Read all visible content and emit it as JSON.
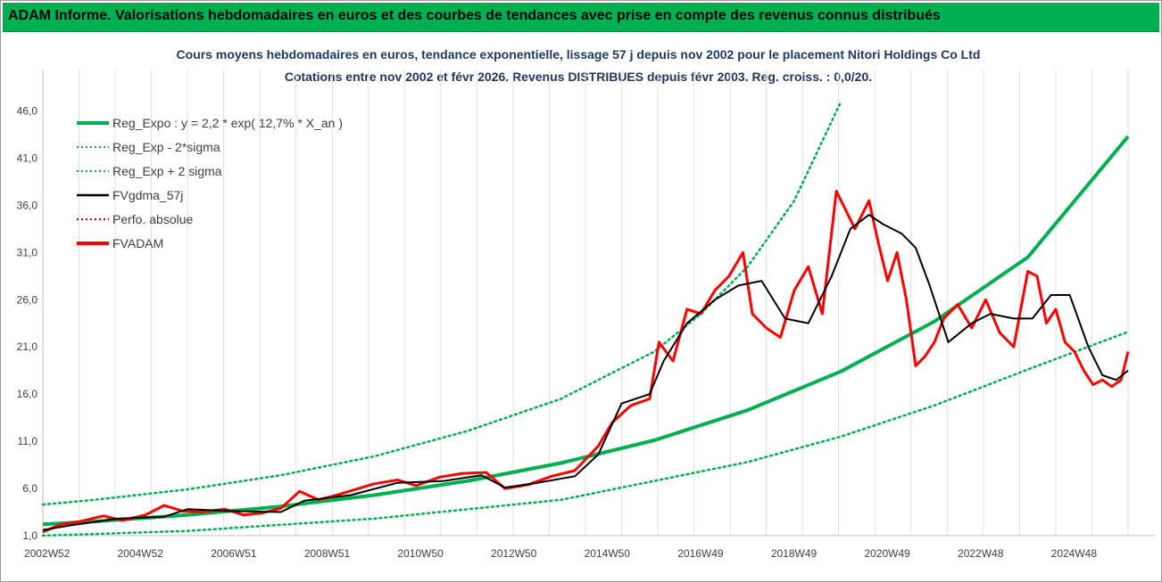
{
  "banner": {
    "title": "ADAM Informe. Valorisations hebdomadaires en euros et des courbes de tendances avec prise en compte des revenus connus distribués"
  },
  "colors": {
    "banner": "#00b050",
    "reg_expo": "#00b050",
    "sigma_bands": "#00b050",
    "fvgdma": "#000000",
    "perfo": "#e00000",
    "fvadam": "#ff0000",
    "title_text": "#1f3864"
  },
  "chart_data": {
    "type": "line",
    "title": "Cours moyens hebdomadaires en euros, tendance exponentielle, lissage 57 j depuis nov 2002 pour le placement Nitori Holdings Co Ltd",
    "subtitle": "Cotations entre nov 2002 et févr 2026. Revenus DISTRIBUES depuis févr 2003. Reg. croiss. : 0,0/20.",
    "xlabel": "",
    "ylabel": "",
    "ylim": [
      1.0,
      48.5
    ],
    "xlim": [
      2002.9,
      2026.15
    ],
    "grid": "vertical",
    "legend_position": "top-left",
    "y_ticks": [
      "1,0",
      "6,0",
      "11,0",
      "16,0",
      "21,0",
      "26,0",
      "31,0",
      "36,0",
      "41,0",
      "46,0"
    ],
    "y_tick_values": [
      1,
      6,
      11,
      16,
      21,
      26,
      31,
      36,
      41,
      46
    ],
    "x_ticks": [
      "2002W52",
      "2004W52",
      "2006W51",
      "2008W51",
      "2010W50",
      "2012W50",
      "2014W50",
      "2016W49",
      "2018W49",
      "2020W49",
      "2022W48",
      "2024W48"
    ],
    "x_tick_values": [
      2002.99,
      2004.99,
      2006.99,
      2008.99,
      2010.99,
      2012.99,
      2014.99,
      2016.99,
      2018.99,
      2020.99,
      2022.99,
      2024.99
    ],
    "legend": [
      {
        "label": "Reg_Expo : y = 2,2 * exp( 12,7% *  X_an )",
        "color": "#00b050",
        "style": "solid-thick"
      },
      {
        "label": "Reg_Exp - 2*sigma",
        "color": "#00b050",
        "style": "dotted"
      },
      {
        "label": "Reg_Exp + 2 sigma",
        "color": "#00b050",
        "style": "dotted"
      },
      {
        "label": "FVgdma_57j",
        "color": "#000000",
        "style": "solid"
      },
      {
        "label": "Perfo. absolue",
        "color": "#e00000",
        "style": "dotted"
      },
      {
        "label": "FVADAM",
        "color": "#ff0000",
        "style": "solid-thick"
      }
    ],
    "series": [
      {
        "name": "Reg_Expo : y = 2,2 * exp( 12,7% *  X_an )",
        "x": [
          2002.9,
          2004.0,
          2006.0,
          2008.0,
          2010.0,
          2012.0,
          2014.0,
          2016.0,
          2018.0,
          2020.0,
          2022.0,
          2024.0,
          2026.15
        ],
        "values": [
          2.2,
          2.5,
          3.2,
          4.1,
          5.3,
          6.8,
          8.7,
          11.1,
          14.3,
          18.4,
          23.7,
          30.5,
          43.3
        ]
      },
      {
        "name": "Reg_Exp - 2*sigma",
        "x": [
          2002.9,
          2006.0,
          2010.0,
          2014.0,
          2018.0,
          2020.0,
          2022.0,
          2024.0,
          2026.15
        ],
        "values": [
          1.0,
          1.5,
          2.8,
          4.8,
          8.8,
          11.5,
          14.8,
          18.6,
          22.6
        ]
      },
      {
        "name": "Reg_Exp + 2 sigma",
        "x": [
          2002.9,
          2004.0,
          2006.0,
          2008.0,
          2010.0,
          2012.0,
          2014.0,
          2016.0,
          2017.0,
          2018.0,
          2019.0,
          2020.0
        ],
        "values": [
          4.3,
          4.8,
          5.9,
          7.4,
          9.4,
          12.1,
          15.5,
          20.5,
          24.5,
          29.5,
          36.5,
          47.0
        ]
      },
      {
        "name": "FVgdma_57j",
        "x": [
          2002.9,
          2003.5,
          2004.5,
          2005.5,
          2006.0,
          2007.0,
          2008.0,
          2008.5,
          2009.5,
          2010.5,
          2011.5,
          2012.3,
          2012.8,
          2013.5,
          2014.3,
          2014.8,
          2015.3,
          2015.9,
          2016.2,
          2016.7,
          2017.3,
          2017.8,
          2018.3,
          2018.8,
          2019.3,
          2019.8,
          2020.2,
          2020.6,
          2020.9,
          2021.3,
          2021.6,
          2021.9,
          2022.3,
          2022.8,
          2023.2,
          2023.7,
          2024.1,
          2024.5,
          2024.9,
          2025.3,
          2025.6,
          2025.9,
          2026.15
        ],
        "values": [
          1.6,
          2.1,
          2.8,
          3.0,
          3.8,
          3.6,
          3.5,
          4.7,
          5.3,
          6.6,
          6.8,
          7.4,
          6.1,
          6.6,
          7.3,
          9.6,
          15.0,
          16.0,
          19.5,
          23.5,
          26.0,
          27.5,
          28.0,
          24.0,
          23.5,
          28.5,
          33.5,
          35.0,
          34.0,
          33.0,
          31.5,
          27.5,
          21.5,
          23.5,
          24.5,
          24.0,
          24.0,
          26.5,
          26.5,
          21.0,
          18.0,
          17.5,
          18.5
        ]
      },
      {
        "name": "FVADAM",
        "x": [
          2002.9,
          2003.3,
          2003.7,
          2004.2,
          2004.6,
          2005.1,
          2005.5,
          2005.9,
          2006.3,
          2006.8,
          2007.2,
          2007.6,
          2008.0,
          2008.4,
          2008.8,
          2009.2,
          2009.6,
          2010.0,
          2010.5,
          2010.9,
          2011.4,
          2011.9,
          2012.4,
          2012.8,
          2013.3,
          2013.8,
          2014.3,
          2014.8,
          2015.1,
          2015.5,
          2015.9,
          2016.1,
          2016.4,
          2016.7,
          2017.0,
          2017.3,
          2017.6,
          2017.9,
          2018.1,
          2018.4,
          2018.7,
          2019.0,
          2019.3,
          2019.6,
          2019.9,
          2020.1,
          2020.3,
          2020.6,
          2020.8,
          2021.0,
          2021.2,
          2021.4,
          2021.6,
          2021.8,
          2022.0,
          2022.2,
          2022.5,
          2022.8,
          2023.1,
          2023.4,
          2023.7,
          2024.0,
          2024.2,
          2024.4,
          2024.6,
          2024.8,
          2025.0,
          2025.2,
          2025.4,
          2025.6,
          2025.8,
          2026.0,
          2026.15
        ],
        "values": [
          1.4,
          2.2,
          2.5,
          3.1,
          2.6,
          3.2,
          4.2,
          3.6,
          3.5,
          3.8,
          3.2,
          3.4,
          3.9,
          5.7,
          4.8,
          5.3,
          5.9,
          6.5,
          6.9,
          6.3,
          7.2,
          7.6,
          7.7,
          6.0,
          6.4,
          7.3,
          7.9,
          10.5,
          13.0,
          14.8,
          15.5,
          21.5,
          19.5,
          25.0,
          24.5,
          27.0,
          28.5,
          31.0,
          24.5,
          23.0,
          22.0,
          27.0,
          29.5,
          24.5,
          37.5,
          35.5,
          33.5,
          36.5,
          32.0,
          28.0,
          31.0,
          26.0,
          19.0,
          20.0,
          21.5,
          24.0,
          25.5,
          23.0,
          26.0,
          22.5,
          21.0,
          29.0,
          28.5,
          23.5,
          25.0,
          21.5,
          20.5,
          18.5,
          17.0,
          17.5,
          16.8,
          17.5,
          20.5
        ]
      }
    ]
  }
}
